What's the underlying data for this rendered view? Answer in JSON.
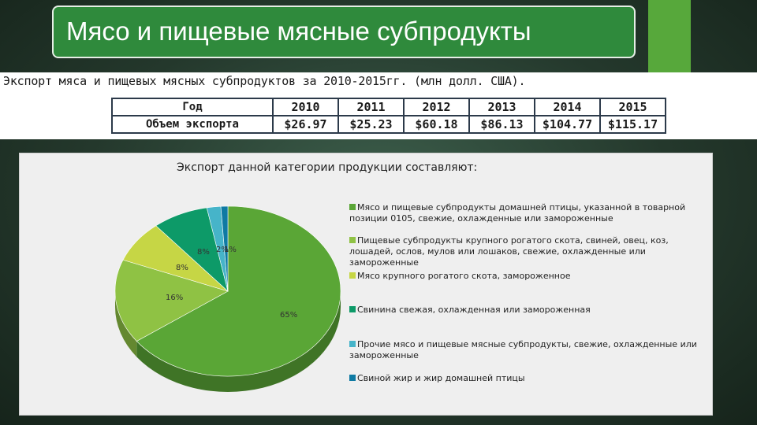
{
  "slide": {
    "title": "Мясо и пищевые мясные субпродукты"
  },
  "table": {
    "caption": "Экспорт мяса и пищевых мясных субпродуктов за 2010-2015гг. (млн долл. США).",
    "row_labels": [
      "Год",
      "Объем экспорта"
    ],
    "years": [
      "2010",
      "2011",
      "2012",
      "2013",
      "2014",
      "2015"
    ],
    "values": [
      "$26.97",
      "$25.23",
      "$60.18",
      "$86.13",
      "$104.77",
      "$115.17"
    ]
  },
  "chart_data": {
    "type": "pie",
    "title": "Экспорт данной категории продукции составляют:",
    "legend_position": "right",
    "slices": [
      {
        "label": "Мясо и пищевые субпродукты домашней птицы, указанной в товарной позиции 0105, свежие, охлажденные или замороженные",
        "value": 65,
        "label_text": "65%",
        "color": "#5aa636"
      },
      {
        "label": "Пищевые субпродукты крупного рогатого скота, свиней, овец, коз, лошадей, ослов, мулов или лошаков, свежие, охлажденные или замороженные",
        "value": 16,
        "label_text": "16%",
        "color": "#8fc244"
      },
      {
        "label": "Мясо крупного рогатого скота, замороженное",
        "value": 8,
        "label_text": "8%",
        "color": "#c6d645"
      },
      {
        "label": "Свинина свежая, охлажденная или замороженная",
        "value": 8,
        "label_text": "8%",
        "color": "#0d9a68"
      },
      {
        "label": "Прочие мясо и пищевые мясные субпродукты, свежие, охлажденные или замороженные",
        "value": 2,
        "label_text": "2%",
        "color": "#46b4c9"
      },
      {
        "label": "Свиной жир и жир домашней птицы",
        "value": 1,
        "label_text": "1%",
        "color": "#0f7aa3"
      }
    ]
  }
}
